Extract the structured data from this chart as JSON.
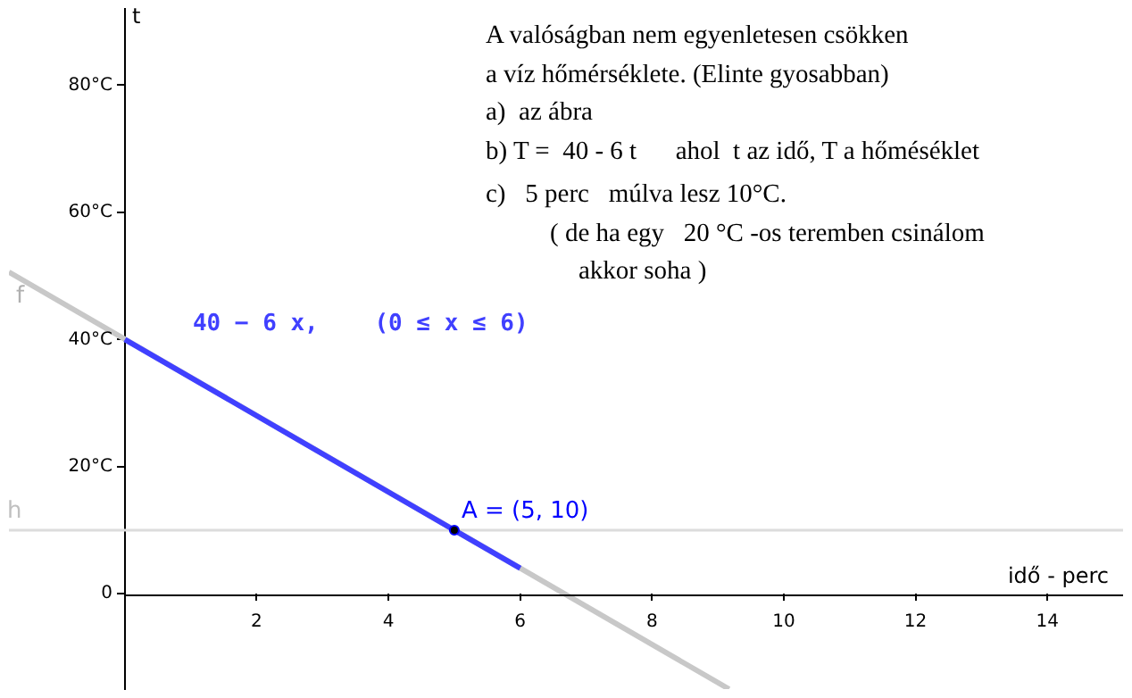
{
  "chart_data": {
    "type": "line",
    "xlabel": "idő - perc",
    "ylabel": "t",
    "xlim": [
      -1.76,
      15.15
    ],
    "ylim": [
      -15,
      92
    ],
    "xticks": [
      2,
      4,
      6,
      8,
      10,
      12,
      14
    ],
    "yticks": [
      {
        "value": 0,
        "label": "0"
      },
      {
        "value": 20,
        "label": "20°C"
      },
      {
        "value": 40,
        "label": "40°C"
      },
      {
        "value": 60,
        "label": "60°C"
      },
      {
        "value": 80,
        "label": "80°C"
      }
    ],
    "series": [
      {
        "name": "f",
        "color": "#c8c8c8",
        "x": [
          -1.76,
          9.17
        ],
        "values": [
          50.6,
          -15
        ]
      },
      {
        "name": "40 − 6 x,    (0 ≤ x ≤ 6)",
        "color": "#4040ff",
        "x": [
          0,
          6
        ],
        "values": [
          40,
          4
        ]
      },
      {
        "name": "A = (5, 10)",
        "type": "scatter",
        "marker": "circle",
        "color": "#0000ff",
        "x": [
          5
        ],
        "values": [
          10
        ]
      }
    ],
    "ref_lines": [
      {
        "axis": "y",
        "value": 10,
        "label": "h",
        "color": "#dcdcdc"
      }
    ],
    "annotations": [
      "A valóságban nem egyenletesen csökken",
      "a víz hőmérséklete. (Elinte gyosabban)",
      "a)  az ábra",
      "b) T =  40 - 6 t      ahol  t az idő, T a hőméséklet",
      "c)   5 perc   múlva lesz 10°C.",
      "( de ha egy   20 °C -os teremben csinálom",
      "akkor soha )"
    ],
    "grid": false,
    "legend": false
  }
}
